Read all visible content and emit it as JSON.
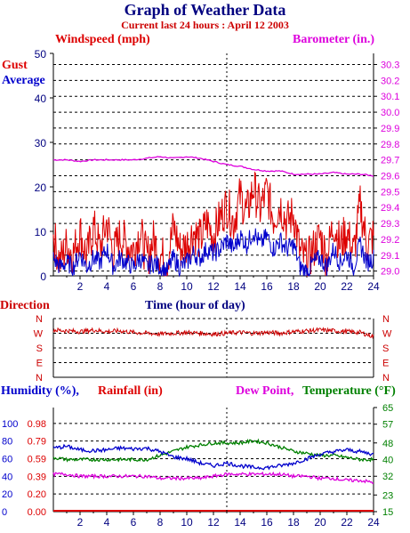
{
  "header": {
    "title": "Graph of Weather Data",
    "subtitle": "Current last 24 hours : April 12 2003"
  },
  "colors": {
    "gust": "#dd0000",
    "average": "#0000cc",
    "barometer": "#dd00dd",
    "direction": "#cc0000",
    "humidity": "#0000cc",
    "rainfall": "#dd0000",
    "dewpoint": "#dd00dd",
    "temperature": "#008000",
    "axis_text": "#000080"
  },
  "chart_data": [
    {
      "type": "line",
      "name": "wind-barometer",
      "legend": {
        "left": "Windspeed (mph)",
        "right": "Barometer (in.)",
        "gust": "Gust",
        "average": "Average"
      },
      "xlabel": "Time (hour of day)",
      "xlim": [
        0,
        24
      ],
      "x_ticks": [
        2,
        4,
        6,
        8,
        10,
        12,
        14,
        16,
        18,
        20,
        22,
        24
      ],
      "ylim_left": [
        0,
        50
      ],
      "y_ticks_left": [
        0,
        10,
        20,
        30,
        40,
        50
      ],
      "ylim_right": [
        28.97,
        30.37
      ],
      "y_ticks_right": [
        29.0,
        29.1,
        29.2,
        29.3,
        29.4,
        29.5,
        29.6,
        29.7,
        29.8,
        29.9,
        30.0,
        30.1,
        30.2,
        30.3
      ],
      "y_tick_labels_right": [
        "29.0",
        "29.1",
        "29.2",
        "29.3",
        "29.4",
        "29.5",
        "29.6",
        "29.7",
        "29.8",
        "29.9",
        "30.0",
        "30.1",
        "30.2",
        "30.3"
      ],
      "marker_hour": 13,
      "series": [
        {
          "name": "Barometer",
          "axis": "right",
          "x": [
            0,
            1,
            2,
            3,
            4,
            5,
            6,
            7,
            8,
            9,
            10,
            11,
            12,
            13,
            14,
            15,
            16,
            17,
            18,
            19,
            20,
            21,
            22,
            23,
            24
          ],
          "values": [
            29.7,
            29.7,
            29.69,
            29.7,
            29.7,
            29.7,
            29.7,
            29.71,
            29.72,
            29.71,
            29.72,
            29.71,
            29.69,
            29.67,
            29.66,
            29.64,
            29.63,
            29.63,
            29.61,
            29.61,
            29.61,
            29.62,
            29.61,
            29.61,
            29.6
          ]
        },
        {
          "name": "Gust",
          "axis": "left",
          "x": [
            0,
            0.5,
            1,
            1.5,
            2,
            2.5,
            3,
            3.5,
            4,
            4.5,
            5,
            5.5,
            6,
            6.5,
            7,
            7.5,
            8,
            8.5,
            9,
            9.5,
            10,
            10.5,
            11,
            11.5,
            12,
            12.5,
            13,
            13.5,
            14,
            14.5,
            15,
            15.5,
            16,
            16.5,
            17,
            17.5,
            18,
            18.5,
            19,
            19.5,
            20,
            20.5,
            21,
            21.5,
            22,
            22.5,
            23,
            23.5,
            24
          ],
          "values": [
            9,
            3,
            7,
            5,
            10,
            4,
            11,
            6,
            12,
            5,
            9,
            7,
            6,
            10,
            4,
            8,
            5,
            3,
            11,
            6,
            7,
            10,
            8,
            12,
            9,
            13,
            16,
            12,
            18,
            14,
            20,
            15,
            19,
            13,
            16,
            12,
            14,
            5,
            3,
            6,
            9,
            4,
            12,
            7,
            10,
            5,
            16,
            7,
            9
          ]
        },
        {
          "name": "Average",
          "axis": "left",
          "x": [
            0,
            0.5,
            1,
            1.5,
            2,
            2.5,
            3,
            3.5,
            4,
            4.5,
            5,
            5.5,
            6,
            6.5,
            7,
            7.5,
            8,
            8.5,
            9,
            9.5,
            10,
            10.5,
            11,
            11.5,
            12,
            12.5,
            13,
            13.5,
            14,
            14.5,
            15,
            15.5,
            16,
            16.5,
            17,
            17.5,
            18,
            18.5,
            19,
            19.5,
            20,
            20.5,
            21,
            21.5,
            22,
            22.5,
            23,
            23.5,
            24
          ],
          "values": [
            4,
            2,
            3,
            2,
            5,
            2,
            4,
            3,
            6,
            2,
            4,
            3,
            2,
            4,
            2,
            3,
            2,
            1,
            4,
            2,
            3,
            5,
            4,
            6,
            5,
            6,
            8,
            6,
            9,
            7,
            10,
            7,
            9,
            6,
            8,
            6,
            7,
            2,
            1,
            3,
            4,
            2,
            6,
            3,
            5,
            2,
            7,
            3,
            4
          ]
        }
      ]
    },
    {
      "type": "line",
      "name": "direction",
      "legend": {
        "left": "Direction"
      },
      "xlim": [
        0,
        24
      ],
      "y_categories_left": [
        "N",
        "W",
        "S",
        "E",
        "N"
      ],
      "y_categories_right": [
        "N",
        "W",
        "S",
        "E",
        "N"
      ],
      "marker_hour": 13,
      "series": [
        {
          "name": "Direction",
          "x": [
            0,
            1,
            2,
            3,
            4,
            5,
            6,
            7,
            8,
            9,
            10,
            11,
            12,
            13,
            14,
            15,
            16,
            17,
            18,
            19,
            20,
            21,
            22,
            23,
            24
          ],
          "values": [
            290,
            285,
            280,
            290,
            280,
            285,
            275,
            270,
            265,
            270,
            275,
            270,
            265,
            270,
            275,
            270,
            275,
            270,
            280,
            285,
            290,
            285,
            280,
            275,
            250
          ]
        }
      ]
    },
    {
      "type": "line",
      "name": "humidity-temperature",
      "legend": {
        "humidity": "Humidity (%),",
        "rainfall": "Rainfall (in)",
        "dewpoint": "Dew Point,",
        "temperature": "Temperature (°F)"
      },
      "xlim": [
        0,
        24
      ],
      "x_ticks": [
        2,
        4,
        6,
        8,
        10,
        12,
        14,
        16,
        18,
        20,
        22,
        24
      ],
      "ylim_left": [
        0,
        118
      ],
      "y_ticks_humidity": [
        0,
        20,
        40,
        60,
        80,
        100
      ],
      "y_ticks_rainfall": [
        "0.00",
        "0.20",
        "0.39",
        "0.59",
        "0.79",
        "0.98"
      ],
      "ylim_right": [
        15,
        65
      ],
      "y_ticks_right": [
        15,
        23,
        32,
        40,
        48,
        57,
        65
      ],
      "marker_hour": 13,
      "series": [
        {
          "name": "Humidity",
          "axis": "left",
          "x": [
            0,
            1,
            2,
            3,
            4,
            5,
            6,
            7,
            8,
            9,
            10,
            11,
            12,
            13,
            14,
            15,
            16,
            17,
            18,
            19,
            20,
            21,
            22,
            23,
            24
          ],
          "values": [
            72,
            74,
            70,
            69,
            70,
            72,
            71,
            72,
            68,
            62,
            60,
            55,
            52,
            55,
            52,
            50,
            50,
            52,
            55,
            60,
            65,
            68,
            70,
            68,
            65
          ]
        },
        {
          "name": "Temperature",
          "axis": "right",
          "x": [
            0,
            1,
            2,
            3,
            4,
            5,
            6,
            7,
            8,
            9,
            10,
            11,
            12,
            13,
            14,
            15,
            16,
            17,
            18,
            19,
            20,
            21,
            22,
            23,
            24
          ],
          "values": [
            41,
            40,
            40,
            40,
            40,
            40,
            40,
            40,
            42,
            44,
            46,
            47,
            48,
            48,
            48,
            49,
            48,
            46,
            44,
            43,
            42,
            42,
            41,
            40,
            40
          ]
        },
        {
          "name": "Dew Point",
          "axis": "right",
          "x": [
            0,
            1,
            2,
            3,
            4,
            5,
            6,
            7,
            8,
            9,
            10,
            11,
            12,
            13,
            14,
            15,
            16,
            17,
            18,
            19,
            20,
            21,
            22,
            23,
            24
          ],
          "values": [
            33,
            33,
            32,
            32,
            32,
            32,
            32,
            32,
            31,
            31,
            31,
            31,
            32,
            33,
            33,
            33,
            33,
            33,
            32,
            32,
            31,
            31,
            30,
            30,
            29
          ]
        }
      ]
    }
  ]
}
